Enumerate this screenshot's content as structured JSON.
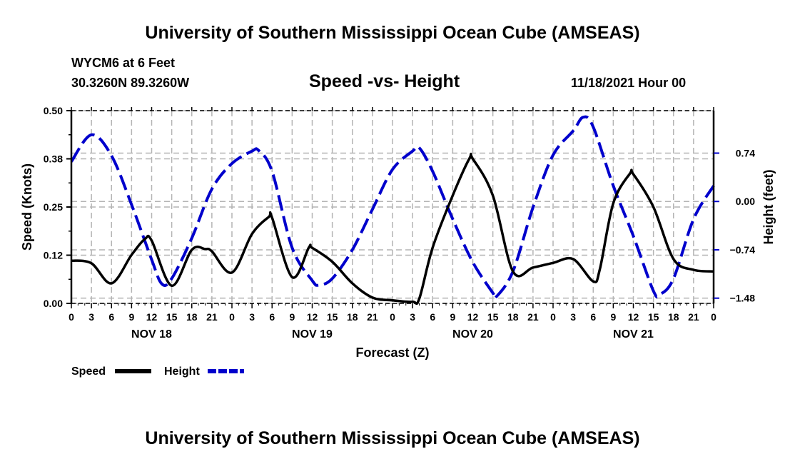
{
  "header": {
    "title": "University of Southern Mississippi Ocean Cube (AMSEAS)",
    "station": "WYCM6 at 6 Feet",
    "coords": "30.3260N  89.3260W",
    "subtitle": "Speed -vs- Height",
    "datetime": "11/18/2021 Hour 00"
  },
  "footer": {
    "title": "University of Southern Mississippi Ocean Cube (AMSEAS)"
  },
  "legend": {
    "items": [
      {
        "label": "Speed",
        "color": "#000000",
        "style": "solid"
      },
      {
        "label": "Height",
        "color": "#0000cc",
        "style": "dashed"
      }
    ]
  },
  "colors": {
    "speed": "#000000",
    "height": "#0000cc",
    "grid": "#b4b4b4"
  },
  "chart_data": {
    "type": "line",
    "title": "Speed -vs- Height",
    "xlabel": "Forecast (Z)",
    "ylabel": "Speed (Knots)",
    "y2label": "Height (feet)",
    "xlim": [
      0,
      96
    ],
    "ylim": [
      0,
      0.5
    ],
    "y2lim": [
      -1.56,
      1.39
    ],
    "grid": true,
    "legend_position": "bottom-left",
    "x_ticks": [
      0,
      3,
      6,
      9,
      12,
      15,
      18,
      21,
      24,
      27,
      30,
      33,
      36,
      39,
      42,
      45,
      48,
      51,
      54,
      57,
      60,
      63,
      66,
      69,
      72,
      75,
      78,
      81,
      84,
      87,
      90,
      93,
      96
    ],
    "x_tick_labels": [
      "0",
      "3",
      "6",
      "9",
      "12",
      "15",
      "18",
      "21",
      "0",
      "3",
      "6",
      "9",
      "12",
      "15",
      "18",
      "21",
      "0",
      "3",
      "6",
      "9",
      "12",
      "15",
      "18",
      "21",
      "0",
      "3",
      "6",
      "9",
      "12",
      "15",
      "18",
      "21",
      "0"
    ],
    "day_labels": [
      {
        "label": "NOV 18",
        "hour": 12
      },
      {
        "label": "NOV 19",
        "hour": 36
      },
      {
        "label": "NOV 20",
        "hour": 60
      },
      {
        "label": "NOV 21",
        "hour": 84
      }
    ],
    "y_ticks": [
      0.0,
      0.125,
      0.25,
      0.375,
      0.5
    ],
    "y_tick_labels": [
      "0.00",
      "0.12",
      "0.25",
      "0.38",
      "0.50"
    ],
    "y2_ticks": [
      0.74,
      0.0,
      -0.74,
      -1.48
    ],
    "y2_tick_labels": [
      "0.74",
      "0.00",
      "−0.74",
      "−1.48"
    ],
    "series": [
      {
        "name": "Speed",
        "axis": "left",
        "x": [
          0,
          3,
          6,
          9,
          11,
          12,
          15,
          18,
          20,
          21,
          24,
          27,
          29.5,
          30,
          33,
          35.5,
          36,
          39,
          42,
          45,
          48,
          51,
          52,
          54,
          57,
          59.5,
          60,
          63,
          66,
          69,
          72,
          75,
          78,
          79,
          81,
          83.5,
          84,
          87,
          90,
          93,
          96
        ],
        "values": [
          0.111,
          0.104,
          0.052,
          0.126,
          0.167,
          0.163,
          0.046,
          0.139,
          0.141,
          0.135,
          0.08,
          0.18,
          0.224,
          0.222,
          0.068,
          0.145,
          0.144,
          0.108,
          0.052,
          0.015,
          0.008,
          0.004,
          0.012,
          0.145,
          0.28,
          0.376,
          0.375,
          0.28,
          0.083,
          0.093,
          0.105,
          0.115,
          0.057,
          0.089,
          0.26,
          0.337,
          0.335,
          0.25,
          0.115,
          0.087,
          0.083
        ]
      },
      {
        "name": "Height",
        "axis": "right",
        "x": [
          0,
          3,
          6,
          9,
          12,
          13.5,
          15,
          18,
          21,
          24,
          27,
          28,
          30,
          33,
          36,
          37,
          39,
          42,
          45,
          48,
          51,
          52,
          54,
          57,
          60,
          63,
          63.5,
          66,
          69,
          72,
          75,
          76.5,
          78,
          81,
          84,
          87,
          88,
          90,
          93,
          96
        ],
        "values": [
          0.61,
          1.02,
          0.7,
          -0.05,
          -0.89,
          -1.26,
          -1.18,
          -0.56,
          0.19,
          0.58,
          0.77,
          0.78,
          0.46,
          -0.71,
          -1.21,
          -1.28,
          -1.18,
          -0.74,
          -0.12,
          0.49,
          0.77,
          0.82,
          0.46,
          -0.27,
          -0.93,
          -1.4,
          -1.46,
          -1.07,
          -0.09,
          0.71,
          1.08,
          1.29,
          1.14,
          0.24,
          -0.53,
          -1.37,
          -1.42,
          -1.18,
          -0.27,
          0.24
        ]
      }
    ]
  }
}
